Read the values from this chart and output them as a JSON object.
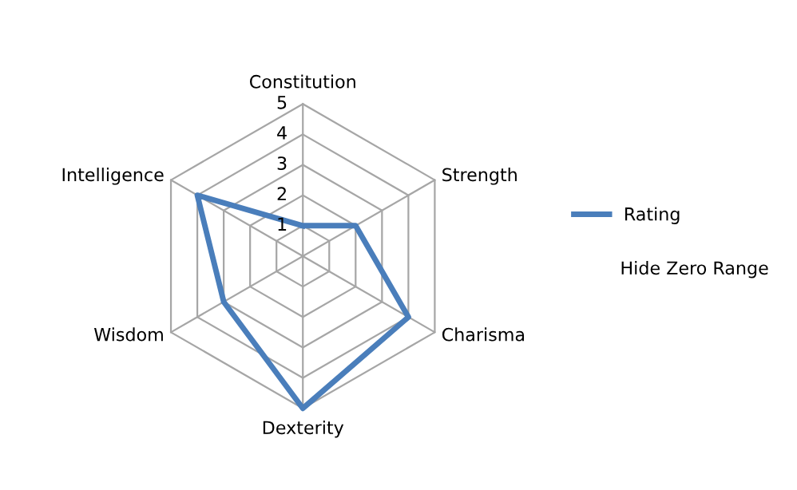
{
  "chart_data": {
    "type": "radar",
    "categories": [
      "Constitution",
      "Strength",
      "Charisma",
      "Dexterity",
      "Wisdom",
      "Intelligence"
    ],
    "series": [
      {
        "name": "Rating",
        "color": "#4a7ebb",
        "values": [
          1,
          2,
          4,
          5,
          3,
          4
        ]
      }
    ],
    "ylim": [
      0,
      5
    ],
    "yticks": [
      1,
      2,
      3,
      4,
      5
    ],
    "grid": true,
    "legend": "right",
    "marker": "none",
    "annotations": [
      "Hide Zero Range"
    ]
  }
}
